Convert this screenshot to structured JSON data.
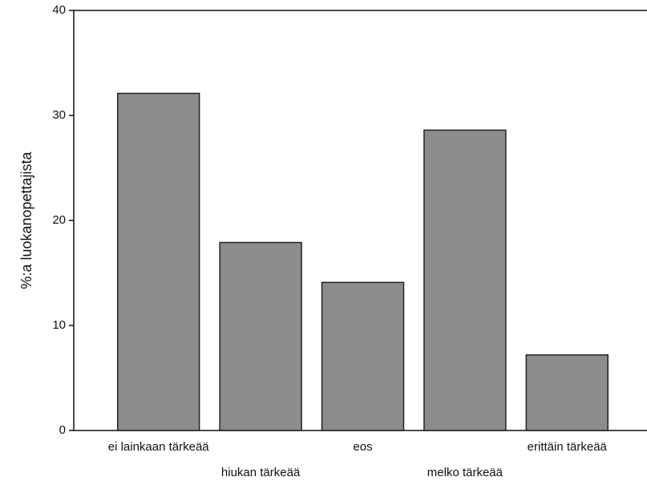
{
  "chart_data": {
    "type": "bar",
    "ylabel": "%:a luokanopettajista",
    "categories": [
      "ei lainkaan tärkeää",
      "hiukan tärkeää",
      "eos",
      "melko tärkeää",
      "erittäin tärkeää"
    ],
    "values": [
      32.1,
      17.9,
      14.1,
      28.6,
      7.2
    ],
    "color": "#8c8c8c",
    "ylim": [
      0,
      40
    ],
    "yticks": [
      0,
      10,
      20,
      30,
      40
    ],
    "grid": false
  }
}
